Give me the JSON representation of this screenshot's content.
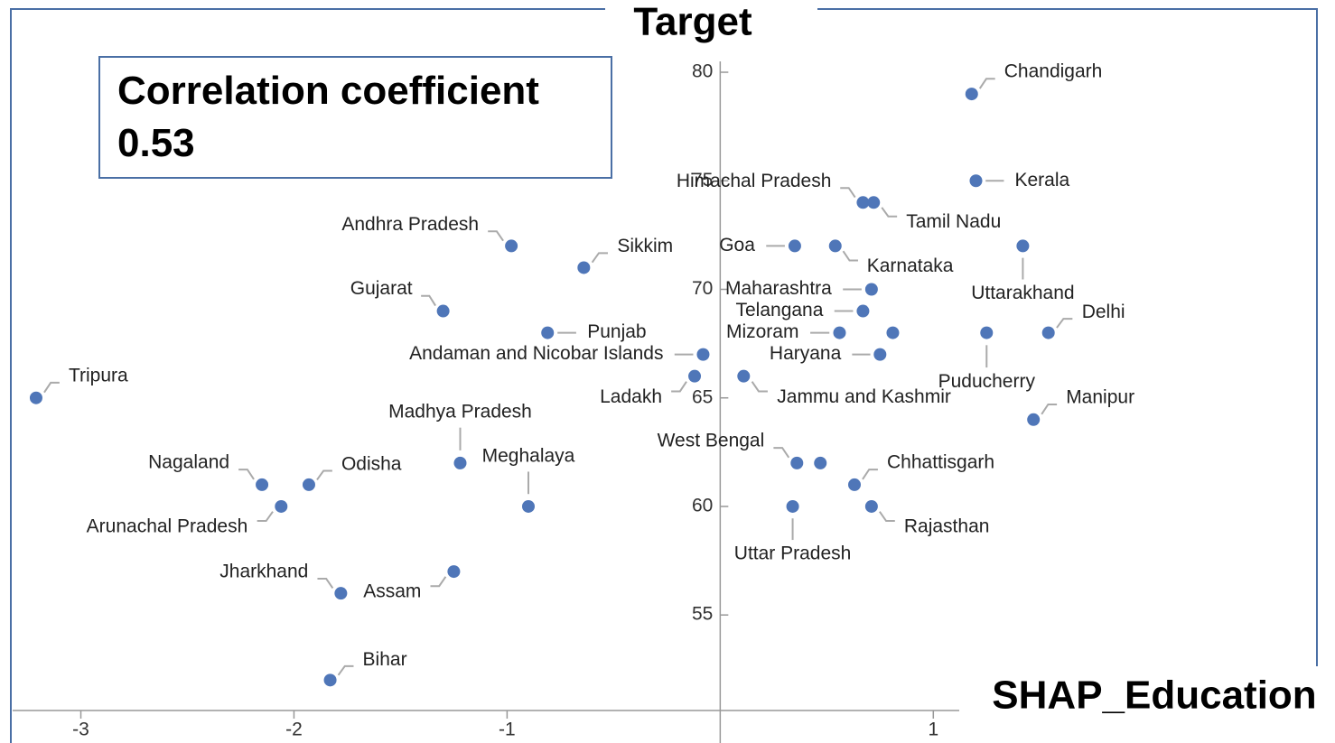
{
  "chart_data": {
    "type": "scatter",
    "xlabel": "SHAP_Education",
    "ylabel": "Target",
    "annotation": [
      "Correlation coefficient",
      "0.53"
    ],
    "color": "#4f76b8",
    "labels": [
      "Chandigarh",
      "Kerala",
      "Himachal Pradesh",
      "Tamil Nadu",
      "Goa",
      "Karnataka",
      "Uttarakhand",
      "Andhra Pradesh",
      "Sikkim",
      "Gujarat",
      "Maharashtra",
      "Telangana",
      "Punjab",
      "Mizoram",
      null,
      "Puducherry",
      "Delhi",
      "Andaman and Nicobar Islands",
      "Haryana",
      "Ladakh",
      "Jammu and Kashmir",
      "Tripura",
      "Manipur",
      "Madhya Pradesh",
      "West Bengal",
      null,
      "Nagaland",
      "Odisha",
      "Chhattisgarh",
      "Arunachal Pradesh",
      "Meghalaya",
      "Uttar Pradesh",
      "Rajasthan",
      "Jharkhand",
      "Assam",
      "Bihar"
    ],
    "x": [
      1.18,
      1.2,
      0.67,
      0.72,
      0.35,
      0.54,
      1.42,
      -0.98,
      -0.64,
      -1.3,
      0.71,
      0.67,
      -0.81,
      0.56,
      0.81,
      1.25,
      1.54,
      -0.08,
      0.75,
      -0.12,
      0.11,
      -3.21,
      1.47,
      -1.22,
      0.36,
      0.47,
      -2.15,
      -1.93,
      0.63,
      -2.06,
      -0.9,
      0.34,
      0.71,
      -1.78,
      -1.25,
      -1.83
    ],
    "values": [
      79,
      75,
      74,
      74,
      72,
      72,
      72,
      72,
      71,
      69,
      70,
      69,
      68,
      68,
      68,
      68,
      68,
      67,
      67,
      66,
      66,
      65,
      64,
      62,
      62,
      62,
      61,
      61,
      61,
      60,
      60,
      60,
      60,
      56,
      57,
      52
    ],
    "xlim": [
      -3.32,
      2.8
    ],
    "ylim": [
      50.6,
      80.5
    ],
    "xticks": [
      -3,
      -2,
      -1,
      1
    ],
    "yticks": [
      55,
      60,
      65,
      70,
      75,
      80
    ]
  }
}
